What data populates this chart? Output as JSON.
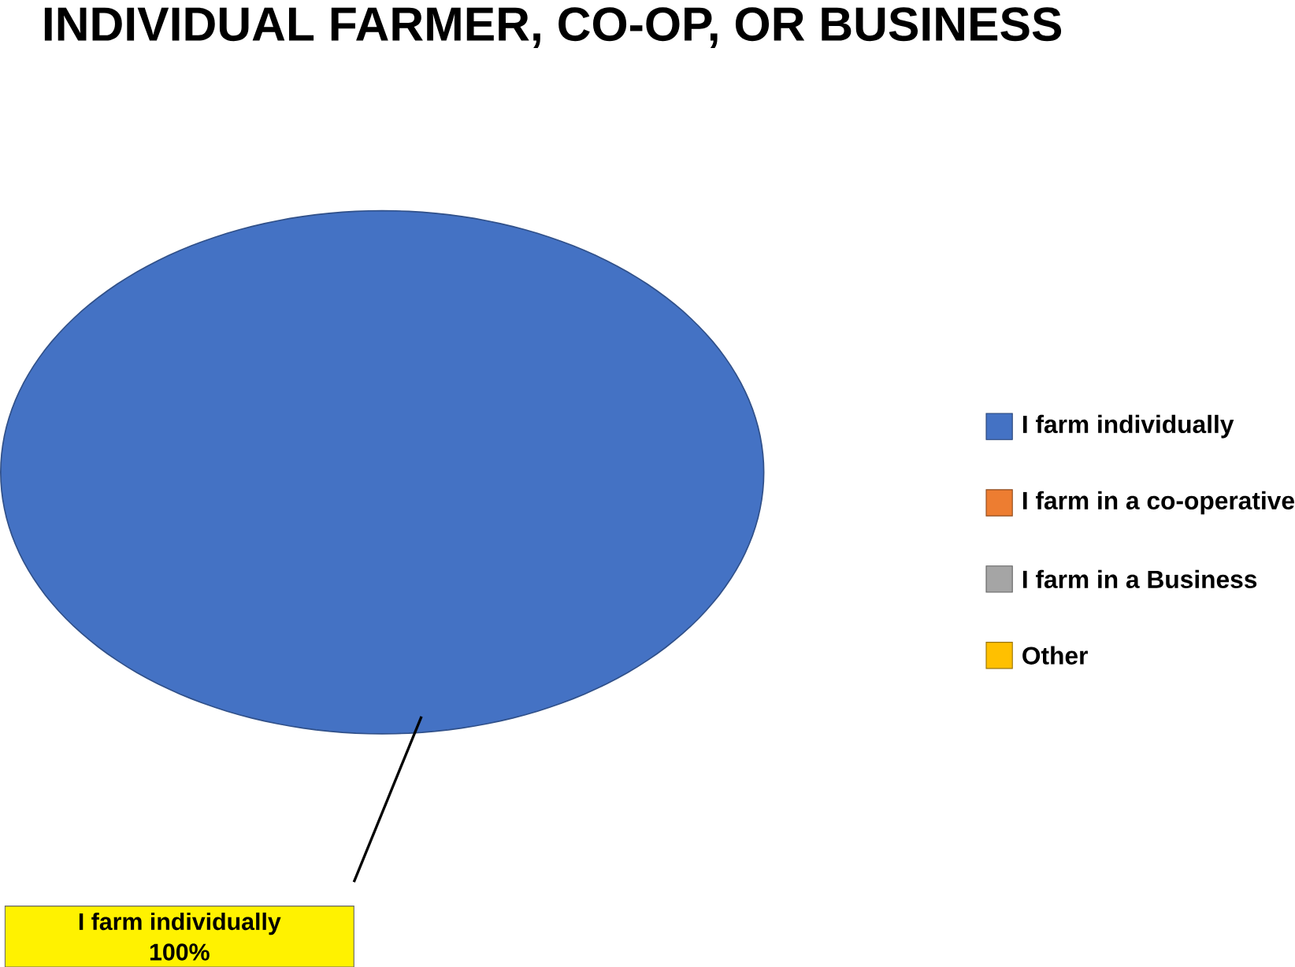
{
  "chart_data": {
    "type": "pie",
    "title": "INDIVIDUAL FARMER, CO-OP, OR BUSINESS",
    "categories": [
      "I farm individually",
      "I farm in a co-operative",
      "I farm in a Business",
      "Other"
    ],
    "values": [
      100,
      0,
      0,
      0
    ],
    "colors": [
      "#4472c4",
      "#ed7d31",
      "#a5a5a5",
      "#ffc000"
    ],
    "legend": "right",
    "value_labels": [
      "100%",
      null,
      null,
      null
    ]
  }
}
